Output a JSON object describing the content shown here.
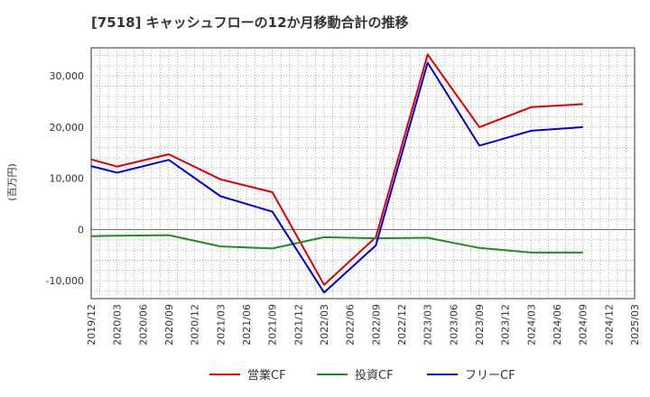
{
  "chart_data": {
    "type": "line",
    "title": "[7518]  キャッシュフローの12か月移動合計の推移",
    "ylabel": "(百万円)",
    "xlabel": "",
    "ylim": [
      -13500,
      35500
    ],
    "yticks": [
      -10000,
      0,
      10000,
      20000,
      30000
    ],
    "ytick_labels": [
      "-10,000",
      "0",
      "10,000",
      "20,000",
      "30,000"
    ],
    "categories": [
      "2019/12",
      "2020/03",
      "2020/06",
      "2020/09",
      "2020/12",
      "2021/03",
      "2021/06",
      "2021/09",
      "2021/12",
      "2022/03",
      "2022/06",
      "2022/09",
      "2022/12",
      "2023/03",
      "2023/06",
      "2023/09",
      "2023/12",
      "2024/03",
      "2024/06",
      "2024/09",
      "2024/12",
      "2025/03"
    ],
    "legend_position": "bottom",
    "grid": true,
    "series": [
      {
        "name": "営業CF",
        "color": "#dd0000",
        "points": [
          [
            0,
            13700
          ],
          [
            1,
            12300
          ],
          [
            3,
            14700
          ],
          [
            5,
            9800
          ],
          [
            7,
            7300
          ],
          [
            9,
            -10800
          ],
          [
            11,
            -1500
          ],
          [
            13,
            34200
          ],
          [
            15,
            20000
          ],
          [
            17,
            23900
          ],
          [
            19,
            24500
          ]
        ]
      },
      {
        "name": "投資CF",
        "color": "#228b22",
        "points": [
          [
            0,
            -1300
          ],
          [
            1,
            -1200
          ],
          [
            3,
            -1100
          ],
          [
            5,
            -3300
          ],
          [
            7,
            -3700
          ],
          [
            9,
            -1500
          ],
          [
            11,
            -1700
          ],
          [
            13,
            -1600
          ],
          [
            15,
            -3600
          ],
          [
            17,
            -4500
          ],
          [
            19,
            -4500
          ]
        ]
      },
      {
        "name": "フリーCF",
        "color": "#0000cc",
        "points": [
          [
            0,
            12400
          ],
          [
            1,
            11100
          ],
          [
            3,
            13600
          ],
          [
            5,
            6500
          ],
          [
            7,
            3500
          ],
          [
            9,
            -12300
          ],
          [
            11,
            -3100
          ],
          [
            13,
            32600
          ],
          [
            15,
            16400
          ],
          [
            17,
            19300
          ],
          [
            19,
            20000
          ]
        ]
      }
    ]
  }
}
